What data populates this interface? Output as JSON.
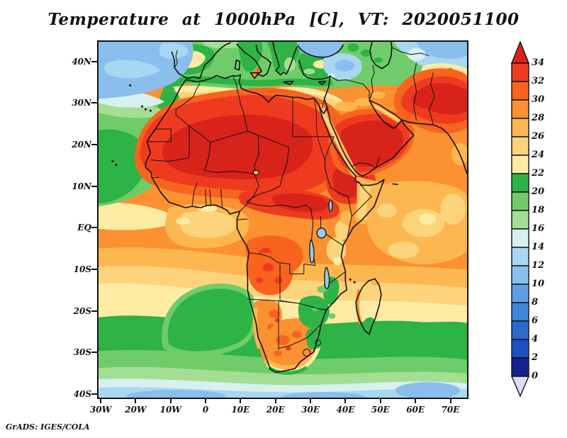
{
  "title": "Temperature at 1000hPa [C], VT: 2020051100",
  "credit": "GrADS: IGES/COLA",
  "axes": {
    "lat_labels": [
      "40N",
      "30N",
      "20N",
      "10N",
      "EQ",
      "10S",
      "20S",
      "30S",
      "40S"
    ],
    "lon_labels": [
      "30W",
      "20W",
      "10W",
      "0",
      "10E",
      "20E",
      "30E",
      "40E",
      "50E",
      "60E",
      "70E"
    ]
  },
  "colorbar": {
    "unit": "C",
    "tick_labels": [
      "34",
      "32",
      "30",
      "28",
      "26",
      "24",
      "22",
      "20",
      "18",
      "16",
      "14",
      "12",
      "10",
      "8",
      "6",
      "4",
      "2",
      "0"
    ],
    "over_color": "#d8231b",
    "under_color": "#dcdcf6",
    "range_colors_high_to_low": [
      "#ee3b20",
      "#f8641e",
      "#fb9130",
      "#fdb751",
      "#fdd37c",
      "#fdeba4",
      "#2db346",
      "#6fcc68",
      "#a4dd94",
      "#d8f0ee",
      "#a8d7f2",
      "#8abeec",
      "#5c9fe2",
      "#3f86da",
      "#2b6bd0",
      "#1d50c0",
      "#17208c"
    ]
  },
  "chart_data": {
    "type": "heatmap",
    "title": "Temperature at 1000hPa [C], VT: 2020051100",
    "variable": "Temperature",
    "level": "1000hPa",
    "units": "C",
    "valid_time": "2020051100",
    "x_ticks": [
      "30W",
      "20W",
      "10W",
      "0",
      "10E",
      "20E",
      "30E",
      "40E",
      "50E",
      "60E",
      "70E"
    ],
    "y_ticks": [
      "40N",
      "30N",
      "20N",
      "10N",
      "EQ",
      "10S",
      "20S",
      "30S",
      "40S"
    ],
    "contour_levels": [
      0,
      2,
      4,
      6,
      8,
      10,
      12,
      14,
      16,
      18,
      20,
      22,
      24,
      26,
      28,
      30,
      32,
      34
    ],
    "palette_low_to_high": [
      "#dcdcf6",
      "#17208c",
      "#1d50c0",
      "#2b6bd0",
      "#3f86da",
      "#5c9fe2",
      "#8abeec",
      "#a8d7f2",
      "#d8f0ee",
      "#a4dd94",
      "#6fcc68",
      "#2db346",
      "#fdeba4",
      "#fdd37c",
      "#fdb751",
      "#fb9130",
      "#f8641e",
      "#ee3b20",
      "#d8231b"
    ],
    "hot_regions": [
      "Sahara and Sahel 32 to >34",
      "Arabian Peninsula interior 32 to >34",
      "Iran-Afghanistan 32 to >34",
      "Ethiopia/Horn of Africa 30-34",
      "CAR/South Sudan band 30-32",
      "Angola and Kalahari interior 28-32"
    ],
    "cool_regions": [
      "Northeast Atlantic 8-16",
      "Black Sea and eastern Mediterranean 10-14",
      "Caspian region 10-14",
      "Canary current / west African coast waters 16-22",
      "Southern Ocean 10-16",
      "Benguela green tongue 20-22"
    ]
  }
}
